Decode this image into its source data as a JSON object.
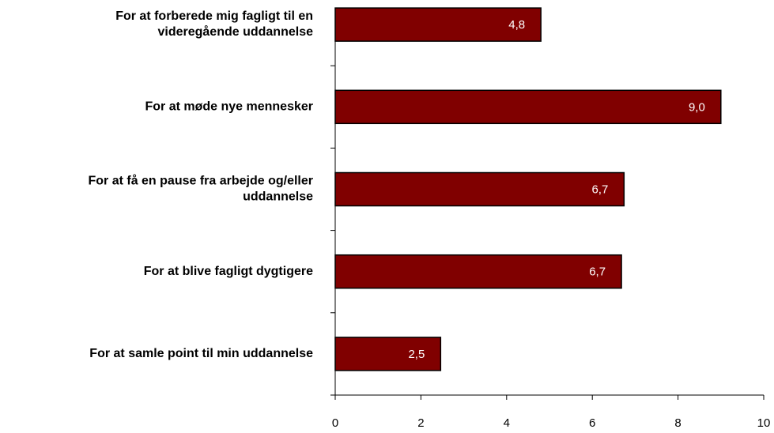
{
  "chart_data": {
    "type": "bar",
    "orientation": "horizontal",
    "categories": [
      "For at forberede mig fagligt til en\nvideregående uddannelse",
      "For at møde nye mennesker",
      "For at få en pause fra arbejde og/eller\nuddannelse",
      "For at blive fagligt dygtigere ",
      "For at samle point til min uddannelse"
    ],
    "values": [
      4.8,
      9.0,
      6.74,
      6.68,
      2.46
    ],
    "value_labels": [
      "4,8",
      "9,0",
      "6,7",
      "6,7",
      "2,5"
    ],
    "color": "#800000",
    "xlim": [
      0,
      10
    ],
    "xticks": [
      0,
      2,
      4,
      6,
      8,
      10
    ],
    "grid": false
  }
}
